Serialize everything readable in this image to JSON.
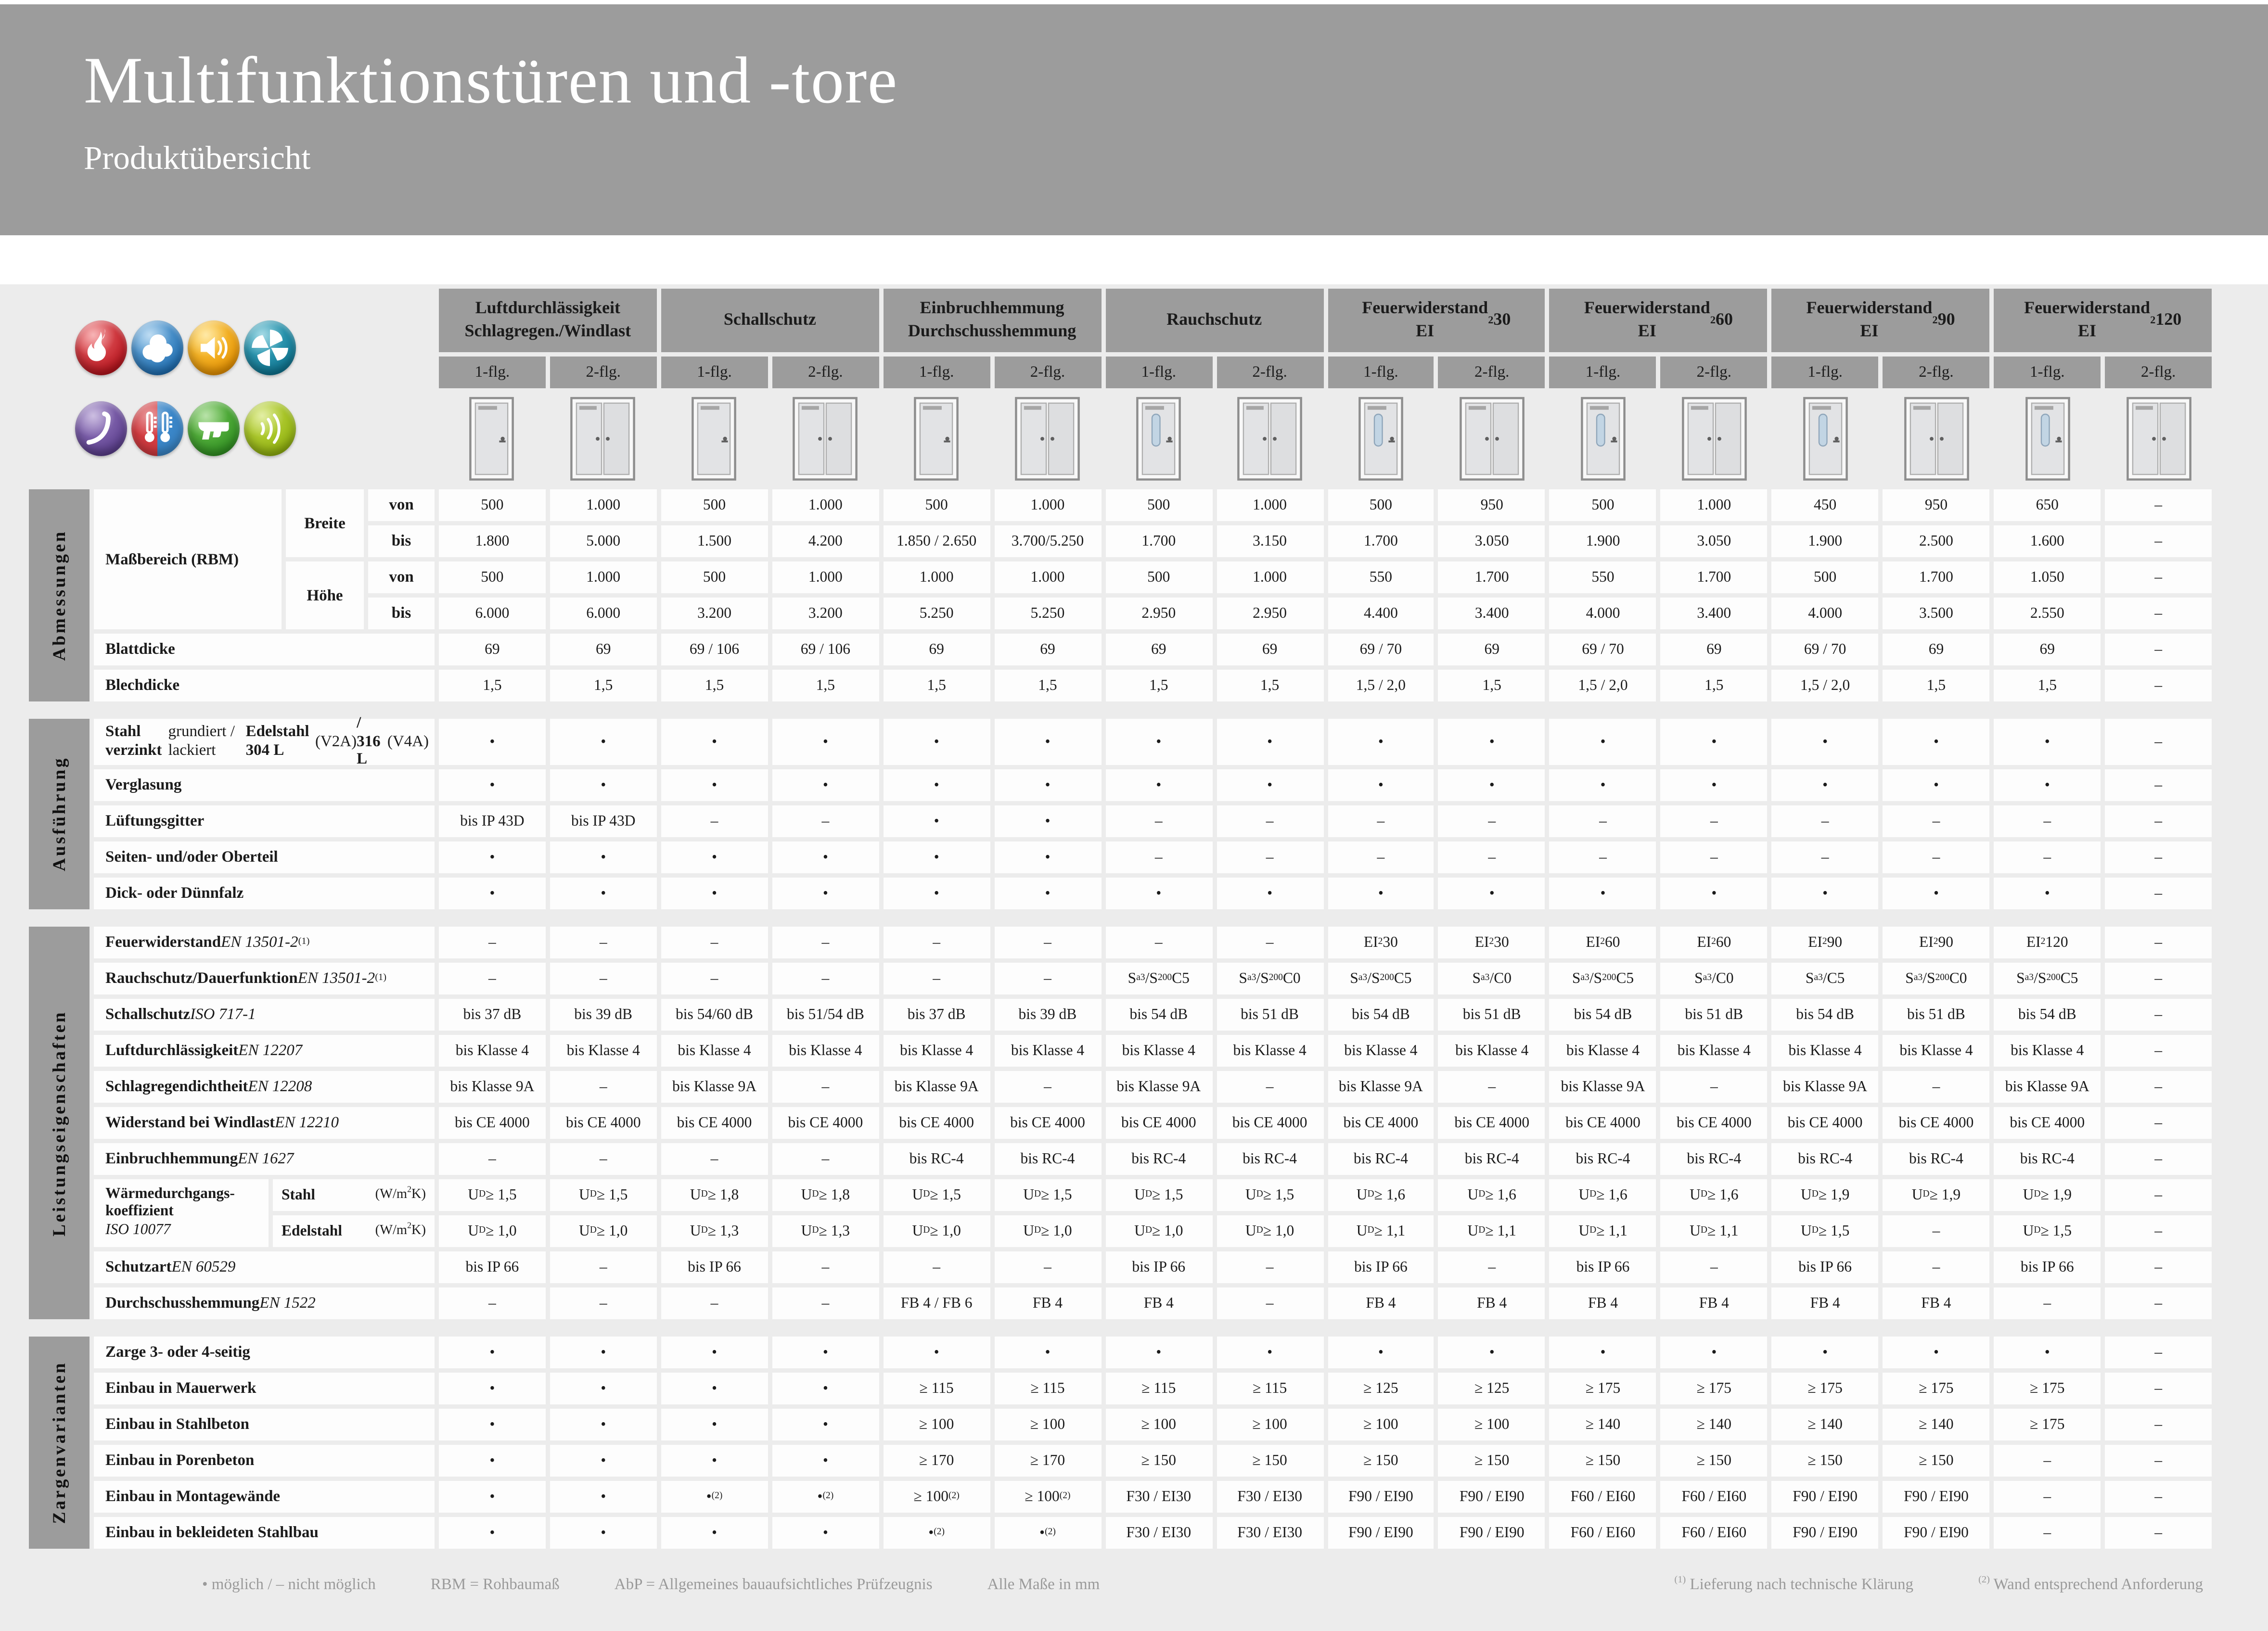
{
  "header": {
    "title": "Multifunktionstüren und -tore",
    "subtitle": "Produktübersicht"
  },
  "colors": {
    "band": "#9c9c9c",
    "header_cell": "#9c9c9c",
    "sheet": "#ececec",
    "glazing": "#c2d5e4"
  },
  "property_icons": [
    {
      "name": "fire-protection-icon",
      "c1": "#ef6a6e",
      "c2": "#b5121b"
    },
    {
      "name": "smoke-protection-icon",
      "c1": "#7cb9e6",
      "c2": "#1d6cb0"
    },
    {
      "name": "sound-insulation-icon",
      "c1": "#ffd34e",
      "c2": "#e79100"
    },
    {
      "name": "ventilation-icon",
      "c1": "#49b4cb",
      "c2": "#0d7490"
    },
    {
      "name": "burglar-resistance-icon",
      "c1": "#9a7ec4",
      "c2": "#5a3d8c"
    },
    {
      "name": "thermal-insulation-icon",
      "c1": "#d33b40",
      "c2": "#3a86c8",
      "split": true
    },
    {
      "name": "bullet-resistance-icon",
      "c1": "#72c653",
      "c2": "#2f9021"
    },
    {
      "name": "radiation-protection-icon",
      "c1": "#c6dd4a",
      "c2": "#8fb00d"
    }
  ],
  "column_groups": [
    {
      "title": "Luftdurchlässigkeit\nSchlagregen./Windlast"
    },
    {
      "title": "Schallschutz"
    },
    {
      "title": "Einbruchhemmung\nDurchschusshemmung"
    },
    {
      "title": "Rauchschutz"
    },
    {
      "title": "Feuerwiderstand\nEI~2~30"
    },
    {
      "title": "Feuerwiderstand\nEI~2~60"
    },
    {
      "title": "Feuerwiderstand\nEI~2~90"
    },
    {
      "title": "Feuerwiderstand\nEI~2~120"
    }
  ],
  "leaf_labels": [
    "1-flg.",
    "2-flg."
  ],
  "doors": [
    {
      "type": "single",
      "glazing": false
    },
    {
      "type": "double",
      "glazing": false
    },
    {
      "type": "single",
      "glazing": false
    },
    {
      "type": "double",
      "glazing": false
    },
    {
      "type": "single",
      "glazing": false
    },
    {
      "type": "double",
      "glazing": false
    },
    {
      "type": "single",
      "glazing": true
    },
    {
      "type": "double",
      "glazing": false
    },
    {
      "type": "single",
      "glazing": true
    },
    {
      "type": "double",
      "glazing": false
    },
    {
      "type": "single",
      "glazing": true
    },
    {
      "type": "double",
      "glazing": false
    },
    {
      "type": "single",
      "glazing": true
    },
    {
      "type": "double",
      "glazing": false
    },
    {
      "type": "single",
      "glazing": true
    },
    {
      "type": "double",
      "glazing": false
    }
  ],
  "sections": [
    {
      "id": "abmessungen",
      "label": "Abmessungen",
      "measure": {
        "label": "Maßbereich (RBM)",
        "dims": [
          {
            "name": "Breite",
            "rows": [
              {
                "name": "von",
                "values": [
                  "500",
                  "1.000",
                  "500",
                  "1.000",
                  "500",
                  "1.000",
                  "500",
                  "1.000",
                  "500",
                  "950",
                  "500",
                  "1.000",
                  "450",
                  "950",
                  "650",
                  "–"
                ]
              },
              {
                "name": "bis",
                "values": [
                  "1.800",
                  "5.000",
                  "1.500",
                  "4.200",
                  "1.850 / 2.650",
                  "3.700/5.250",
                  "1.700",
                  "3.150",
                  "1.700",
                  "3.050",
                  "1.900",
                  "3.050",
                  "1.900",
                  "2.500",
                  "1.600",
                  "–"
                ]
              }
            ]
          },
          {
            "name": "Höhe",
            "rows": [
              {
                "name": "von",
                "values": [
                  "500",
                  "1.000",
                  "500",
                  "1.000",
                  "1.000",
                  "1.000",
                  "500",
                  "1.000",
                  "550",
                  "1.700",
                  "550",
                  "1.700",
                  "500",
                  "1.700",
                  "1.050",
                  "–"
                ]
              },
              {
                "name": "bis",
                "values": [
                  "6.000",
                  "6.000",
                  "3.200",
                  "3.200",
                  "5.250",
                  "5.250",
                  "2.950",
                  "2.950",
                  "4.400",
                  "3.400",
                  "4.000",
                  "3.400",
                  "4.000",
                  "3.500",
                  "2.550",
                  "–"
                ]
              }
            ]
          }
        ]
      },
      "rows": [
        {
          "label": "*Blattdicke*",
          "values": [
            "69",
            "69",
            "69 / 106",
            "69 / 106",
            "69",
            "69",
            "69",
            "69",
            "69 / 70",
            "69",
            "69 / 70",
            "69",
            "69 / 70",
            "69",
            "69",
            "–"
          ]
        },
        {
          "label": "*Blechdicke*",
          "values": [
            "1,5",
            "1,5",
            "1,5",
            "1,5",
            "1,5",
            "1,5",
            "1,5",
            "1,5",
            "1,5 / 2,0",
            "1,5",
            "1,5 / 2,0",
            "1,5",
            "1,5 / 2,0",
            "1,5",
            "1,5",
            "–"
          ]
        }
      ]
    },
    {
      "id": "ausfuehrung",
      "label": "Ausführung",
      "rows": [
        {
          "label": "*Stahl verzinkt* grundiert / lackiert\n*Edelstahl 304 L* (V2A) */ 316 L* (V4A)",
          "tall": true,
          "values": [
            "•",
            "•",
            "•",
            "•",
            "•",
            "•",
            "•",
            "•",
            "•",
            "•",
            "•",
            "•",
            "•",
            "•",
            "•",
            "–"
          ]
        },
        {
          "label": "*Verglasung*",
          "values": [
            "•",
            "•",
            "•",
            "•",
            "•",
            "•",
            "•",
            "•",
            "•",
            "•",
            "•",
            "•",
            "•",
            "•",
            "•",
            "–"
          ]
        },
        {
          "label": "*Lüftungsgitter*",
          "values": [
            "bis IP 43D",
            "bis IP 43D",
            "–",
            "–",
            "•",
            "•",
            "–",
            "–",
            "–",
            "–",
            "–",
            "–",
            "–",
            "–",
            "–",
            "–"
          ]
        },
        {
          "label": "*Seiten- und/oder Oberteil*",
          "values": [
            "•",
            "•",
            "•",
            "•",
            "•",
            "•",
            "–",
            "–",
            "–",
            "–",
            "–",
            "–",
            "–",
            "–",
            "–",
            "–"
          ]
        },
        {
          "label": "*Dick- oder Dünnfalz*",
          "values": [
            "•",
            "•",
            "•",
            "•",
            "•",
            "•",
            "•",
            "•",
            "•",
            "•",
            "•",
            "•",
            "•",
            "•",
            "•",
            "–"
          ]
        }
      ]
    },
    {
      "id": "leistungseigenschaften",
      "label": "Leistungseigenschaften",
      "rows": [
        {
          "label": "*Feuerwiderstand* _EN 13501-2_^(1)^",
          "values": [
            "–",
            "–",
            "–",
            "–",
            "–",
            "–",
            "–",
            "–",
            "EI~2~30",
            "EI~2~30",
            "EI~2~60",
            "EI~2~60",
            "EI~2~90",
            "EI~2~90",
            "EI~2~120",
            "–"
          ]
        },
        {
          "label": "*Rauchschutz/Dauerfunktion* _EN 13501-2_^(1)^",
          "values": [
            "–",
            "–",
            "–",
            "–",
            "–",
            "–",
            "S~a3~ /S~200~ C5",
            "S~a3~ /S~200~ C0",
            "S~a3~ /S~200~ C5",
            "S~a3~ /C0",
            "S~a3~ /S~200~ C5",
            "S~a3~ /C0",
            "S~a3~ /C5",
            "S~a3~ /S~200~ C0",
            "S~a3~ /S~200~ C5",
            "–"
          ]
        },
        {
          "label": "*Schallschutz* _ISO 717-1_",
          "values": [
            "bis 37 dB",
            "bis 39 dB",
            "bis 54/60 dB",
            "bis 51/54 dB",
            "bis 37 dB",
            "bis 39 dB",
            "bis 54 dB",
            "bis 51 dB",
            "bis 54 dB",
            "bis 51 dB",
            "bis 54 dB",
            "bis 51 dB",
            "bis 54 dB",
            "bis 51 dB",
            "bis 54 dB",
            "–"
          ]
        },
        {
          "label": "*Luftdurchlässigkeit* _EN 12207_",
          "values": [
            "bis Klasse 4",
            "bis Klasse 4",
            "bis Klasse 4",
            "bis Klasse 4",
            "bis Klasse 4",
            "bis Klasse 4",
            "bis Klasse 4",
            "bis Klasse 4",
            "bis Klasse 4",
            "bis Klasse 4",
            "bis Klasse 4",
            "bis Klasse 4",
            "bis Klasse 4",
            "bis Klasse 4",
            "bis Klasse 4",
            "–"
          ]
        },
        {
          "label": "*Schlagregendichtheit* _EN 12208_",
          "values": [
            "bis Klasse 9A",
            "–",
            "bis Klasse 9A",
            "–",
            "bis Klasse 9A",
            "–",
            "bis Klasse 9A",
            "–",
            "bis Klasse 9A",
            "–",
            "bis Klasse 9A",
            "–",
            "bis Klasse 9A",
            "–",
            "bis Klasse 9A",
            "–"
          ]
        },
        {
          "label": "*Widerstand bei Windlast* _EN 12210_",
          "values": [
            "bis CE 4000",
            "bis CE 4000",
            "bis CE 4000",
            "bis CE 4000",
            "bis CE 4000",
            "bis CE 4000",
            "bis CE 4000",
            "bis CE 4000",
            "bis CE 4000",
            "bis CE 4000",
            "bis CE 4000",
            "bis CE 4000",
            "bis CE 4000",
            "bis CE 4000",
            "bis CE 4000",
            "–"
          ]
        },
        {
          "label": "*Einbruchhemmung* _EN 1627_",
          "values": [
            "–",
            "–",
            "–",
            "–",
            "bis RC-4",
            "bis RC-4",
            "bis RC-4",
            "bis RC-4",
            "bis RC-4",
            "bis RC-4",
            "bis RC-4",
            "bis RC-4",
            "bis RC-4",
            "bis RC-4",
            "bis RC-4",
            "–"
          ]
        },
        {
          "block": {
            "label": "*Wärmedurchgangs-\nkoeffizient*\n_ISO 10077_",
            "subs": [
              {
                "name": "Stahl",
                "unit": "(W/m^2^K)",
                "values": [
                  "U~D~ ≥ 1,5",
                  "U~D~ ≥ 1,5",
                  "U~D~ ≥ 1,8",
                  "U~D~ ≥ 1,8",
                  "U~D~ ≥ 1,5",
                  "U~D~ ≥ 1,5",
                  "U~D~ ≥ 1,5",
                  "U~D~ ≥ 1,5",
                  "U~D~ ≥ 1,6",
                  "U~D~ ≥ 1,6",
                  "U~D~ ≥ 1,6",
                  "U~D~ ≥ 1,6",
                  "U~D~ ≥ 1,9",
                  "U~D~ ≥ 1,9",
                  "U~D~ ≥ 1,9",
                  "–"
                ]
              },
              {
                "name": "Edelstahl",
                "unit": "(W/m^2^K)",
                "values": [
                  "U~D~ ≥ 1,0",
                  "U~D~ ≥ 1,0",
                  "U~D~ ≥ 1,3",
                  "U~D~ ≥ 1,3",
                  "U~D~ ≥ 1,0",
                  "U~D~ ≥ 1,0",
                  "U~D~ ≥ 1,0",
                  "U~D~ ≥ 1,0",
                  "U~D~ ≥ 1,1",
                  "U~D~ ≥ 1,1",
                  "U~D~ ≥ 1,1",
                  "U~D~ ≥ 1,1",
                  "U~D~ ≥ 1,5",
                  "–",
                  "U~D~ ≥ 1,5",
                  "–"
                ]
              }
            ]
          }
        },
        {
          "label": "*Schutzart* _EN 60529_",
          "values": [
            "bis IP 66",
            "–",
            "bis IP 66",
            "–",
            "–",
            "–",
            "bis IP 66",
            "–",
            "bis IP 66",
            "–",
            "bis IP 66",
            "–",
            "bis IP 66",
            "–",
            "bis IP 66",
            "–"
          ]
        },
        {
          "label": "*Durchschusshemmung* _EN 1522_",
          "values": [
            "–",
            "–",
            "–",
            "–",
            "FB 4 / FB 6",
            "FB 4",
            "FB 4",
            "–",
            "FB 4",
            "FB 4",
            "FB 4",
            "FB 4",
            "FB 4",
            "FB 4",
            "–",
            "–"
          ]
        }
      ]
    },
    {
      "id": "zargenvarianten",
      "label": "Zargenvarianten",
      "rows": [
        {
          "label": "*Zarge 3- oder 4-seitig*",
          "values": [
            "•",
            "•",
            "•",
            "•",
            "•",
            "•",
            "•",
            "•",
            "•",
            "•",
            "•",
            "•",
            "•",
            "•",
            "•",
            "–"
          ]
        },
        {
          "label": "*Einbau in Mauerwerk*",
          "values": [
            "•",
            "•",
            "•",
            "•",
            "≥ 115",
            "≥ 115",
            "≥ 115",
            "≥ 115",
            "≥ 125",
            "≥ 125",
            "≥ 175",
            "≥ 175",
            "≥ 175",
            "≥ 175",
            "≥ 175",
            "–"
          ]
        },
        {
          "label": "*Einbau in Stahlbeton*",
          "values": [
            "•",
            "•",
            "•",
            "•",
            "≥ 100",
            "≥ 100",
            "≥ 100",
            "≥ 100",
            "≥ 100",
            "≥ 100",
            "≥ 140",
            "≥ 140",
            "≥ 140",
            "≥ 140",
            "≥ 175",
            "–"
          ]
        },
        {
          "label": "*Einbau in Porenbeton*",
          "values": [
            "•",
            "•",
            "•",
            "•",
            "≥ 170",
            "≥ 170",
            "≥ 150",
            "≥ 150",
            "≥ 150",
            "≥ 150",
            "≥ 150",
            "≥ 150",
            "≥ 150",
            "≥ 150",
            "–",
            "–"
          ]
        },
        {
          "label": "*Einbau in Montagewände*",
          "values": [
            "•",
            "•",
            "•^(2)^",
            "•^(2)^",
            "≥ 100^(2)^",
            "≥ 100^(2)^",
            "F30 / EI30",
            "F30 / EI30",
            "F90 / EI90",
            "F90 / EI90",
            "F60 / EI60",
            "F60 / EI60",
            "F90 / EI90",
            "F90 / EI90",
            "–",
            "–"
          ]
        },
        {
          "label": "*Einbau in bekleideten Stahlbau*",
          "values": [
            "•",
            "•",
            "•",
            "•",
            "•^(2)^",
            "•^(2)^",
            "F30 / EI30",
            "F30 / EI30",
            "F90 / EI90",
            "F90 / EI90",
            "F60 / EI60",
            "F60 / EI60",
            "F90 / EI90",
            "F90 / EI90",
            "–",
            "–"
          ]
        }
      ]
    }
  ],
  "footer": {
    "left_items": [
      "• möglich / – nicht möglich",
      "RBM = Rohbaumaß",
      "AbP = Allgemeines bauaufsichtliches Prüfzeugnis",
      "Alle Maße in mm"
    ],
    "right_items": [
      "^(1)^ Lieferung nach technische Klärung",
      "^(2)^ Wand entsprechend Anforderung"
    ]
  }
}
